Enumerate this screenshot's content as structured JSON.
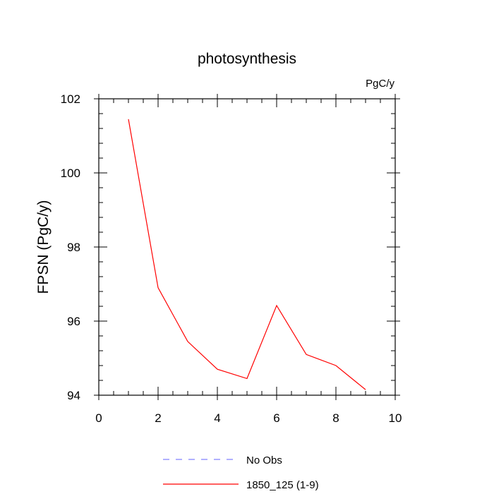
{
  "chart_data": {
    "type": "line",
    "title": "photosynthesis",
    "units_label": "PgC/y",
    "xlabel": "",
    "ylabel": "FPSN  (PgC/y)",
    "xlim": [
      0,
      10
    ],
    "ylim": [
      94,
      102
    ],
    "x_ticks": [
      0,
      2,
      4,
      6,
      8,
      10
    ],
    "y_ticks": [
      94,
      96,
      98,
      100,
      102
    ],
    "grid": false,
    "legend_position": "bottom-center",
    "series": [
      {
        "name": "1850_125 (1-9)",
        "color": "#ff0000",
        "style": "solid",
        "x": [
          1,
          2,
          3,
          4,
          5,
          6,
          7,
          8,
          9
        ],
        "y": [
          101.45,
          96.9,
          95.45,
          94.7,
          94.45,
          96.42,
          95.1,
          94.8,
          94.15
        ]
      }
    ],
    "legend": [
      {
        "label": "No Obs",
        "color": "#8080ff",
        "style": "dashed"
      },
      {
        "label": "1850_125 (1-9)",
        "color": "#ff0000",
        "style": "solid"
      }
    ]
  }
}
